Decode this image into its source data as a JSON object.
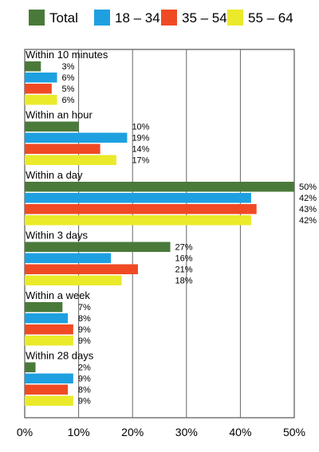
{
  "chart_data": {
    "type": "bar",
    "orientation": "horizontal",
    "categories": [
      "Within 10 minutes",
      "Within an hour",
      "Within a day",
      "Within 3 days",
      "Within a week",
      "Within 28 days"
    ],
    "series": [
      {
        "name": "Total",
        "color": "#4a7a3a",
        "values": [
          3,
          10,
          50,
          27,
          7,
          2
        ]
      },
      {
        "name": "18 – 34",
        "color": "#1ea0e0",
        "values": [
          6,
          19,
          42,
          16,
          8,
          9
        ]
      },
      {
        "name": "35 – 54",
        "color": "#f04a24",
        "values": [
          5,
          14,
          43,
          21,
          9,
          8
        ]
      },
      {
        "name": "55 – 64",
        "color": "#eaea2a",
        "values": [
          6,
          17,
          42,
          18,
          9,
          9
        ]
      }
    ],
    "value_suffix": "%",
    "xlim": [
      0,
      50
    ],
    "xticks": [
      "0%",
      "10%",
      "20%",
      "30%",
      "40%",
      "50%"
    ],
    "grid": "vertical",
    "legend_position": "top"
  }
}
